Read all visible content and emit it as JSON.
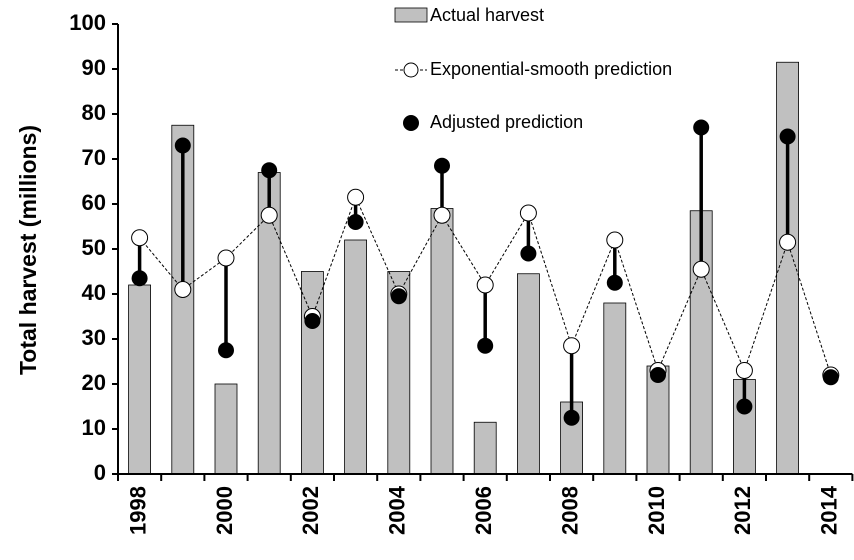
{
  "chart_data": {
    "type": "combo",
    "ylabel": "Total harvest (millions)",
    "categories": [
      "1998",
      null,
      "2000",
      null,
      "2002",
      null,
      "2004",
      null,
      "2006",
      null,
      "2008",
      null,
      "2010",
      null,
      "2012",
      null,
      "2014"
    ],
    "series": [
      {
        "name": "Actual harvest",
        "type": "bar",
        "color": "#c0c0c0",
        "values": [
          42,
          77.5,
          20,
          67,
          45,
          52,
          45,
          59,
          11.5,
          44.5,
          16,
          38,
          24,
          58.5,
          21,
          91.5,
          null
        ]
      },
      {
        "name": "Exponential-smooth prediction",
        "type": "line",
        "color": "#ffffff",
        "values": [
          52.5,
          41,
          48,
          57.5,
          35,
          61.5,
          40,
          57.5,
          42,
          58,
          28.5,
          52,
          23,
          45.5,
          23,
          51.5,
          22
        ]
      },
      {
        "name": "Adjusted prediction",
        "type": "scatter",
        "color": "#000000",
        "values": [
          43.5,
          73,
          27.5,
          67.5,
          34,
          56,
          39.5,
          68.5,
          28.5,
          49,
          12.5,
          42.5,
          22,
          77,
          15,
          75,
          21.5
        ]
      }
    ],
    "ylim": [
      0,
      100
    ],
    "yticks": [
      0,
      10,
      20,
      30,
      40,
      50,
      60,
      70,
      80,
      90,
      100
    ],
    "grid": false
  }
}
